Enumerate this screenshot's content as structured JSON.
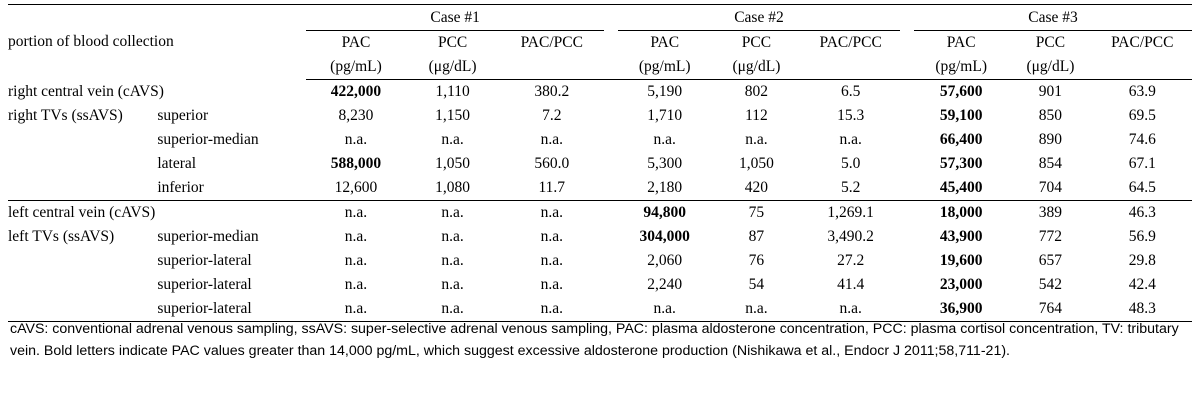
{
  "table": {
    "header": {
      "row_label": "portion of blood collection",
      "cases": [
        "Case #1",
        "Case #2",
        "Case #3"
      ],
      "col_line1": [
        "PAC",
        "PCC",
        "PAC/PCC"
      ],
      "col_line2": [
        "(pg/mL)",
        "(μg/dL)",
        ""
      ]
    },
    "rows": [
      {
        "group": "right central vein (cAVS)",
        "site": "",
        "values": [
          "422,000",
          "1,110",
          "380.2",
          "5,190",
          "802",
          "6.5",
          "57,600",
          "901",
          "63.9"
        ],
        "bold": [
          0,
          6
        ]
      },
      {
        "group": "right TVs (ssAVS)",
        "site": "superior",
        "values": [
          "8,230",
          "1,150",
          "7.2",
          "1,710",
          "112",
          "15.3",
          "59,100",
          "850",
          "69.5"
        ],
        "bold": [
          6
        ]
      },
      {
        "group": "",
        "site": "superior-median",
        "values": [
          "n.a.",
          "n.a.",
          "n.a.",
          "n.a.",
          "n.a.",
          "n.a.",
          "66,400",
          "890",
          "74.6"
        ],
        "bold": [
          6
        ]
      },
      {
        "group": "",
        "site": "lateral",
        "values": [
          "588,000",
          "1,050",
          "560.0",
          "5,300",
          "1,050",
          "5.0",
          "57,300",
          "854",
          "67.1"
        ],
        "bold": [
          0,
          6
        ]
      },
      {
        "group": "",
        "site": "inferior",
        "values": [
          "12,600",
          "1,080",
          "11.7",
          "2,180",
          "420",
          "5.2",
          "45,400",
          "704",
          "64.5"
        ],
        "bold": [
          6
        ]
      },
      {
        "group": "left central vein (cAVS)",
        "site": "",
        "values": [
          "n.a.",
          "n.a.",
          "n.a.",
          "94,800",
          "75",
          "1,269.1",
          "18,000",
          "389",
          "46.3"
        ],
        "bold": [
          3,
          6
        ]
      },
      {
        "group": "left TVs (ssAVS)",
        "site": "superior-median",
        "values": [
          "n.a.",
          "n.a.",
          "n.a.",
          "304,000",
          "87",
          "3,490.2",
          "43,900",
          "772",
          "56.9"
        ],
        "bold": [
          3,
          6
        ]
      },
      {
        "group": "",
        "site": "superior-lateral",
        "values": [
          "n.a.",
          "n.a.",
          "n.a.",
          "2,060",
          "76",
          "27.2",
          "19,600",
          "657",
          "29.8"
        ],
        "bold": [
          6
        ]
      },
      {
        "group": "",
        "site": "superior-lateral",
        "values": [
          "n.a.",
          "n.a.",
          "n.a.",
          "2,240",
          "54",
          "41.4",
          "23,000",
          "542",
          "42.4"
        ],
        "bold": [
          6
        ]
      },
      {
        "group": "",
        "site": "superior-lateral",
        "values": [
          "n.a.",
          "n.a.",
          "n.a.",
          "n.a.",
          "n.a.",
          "n.a.",
          "36,900",
          "764",
          "48.3"
        ],
        "bold": [
          6
        ]
      }
    ]
  },
  "footnote": "cAVS: conventional adrenal venous sampling, ssAVS: super-selective adrenal venous sampling, PAC: plasma aldosterone concentration, PCC: plasma cortisol concentration, TV: tributary vein. Bold letters indicate PAC values greater than 14,000 pg/mL, which suggest excessive aldosterone production (Nishikawa et al., Endocr J 2011;58,711-21)."
}
